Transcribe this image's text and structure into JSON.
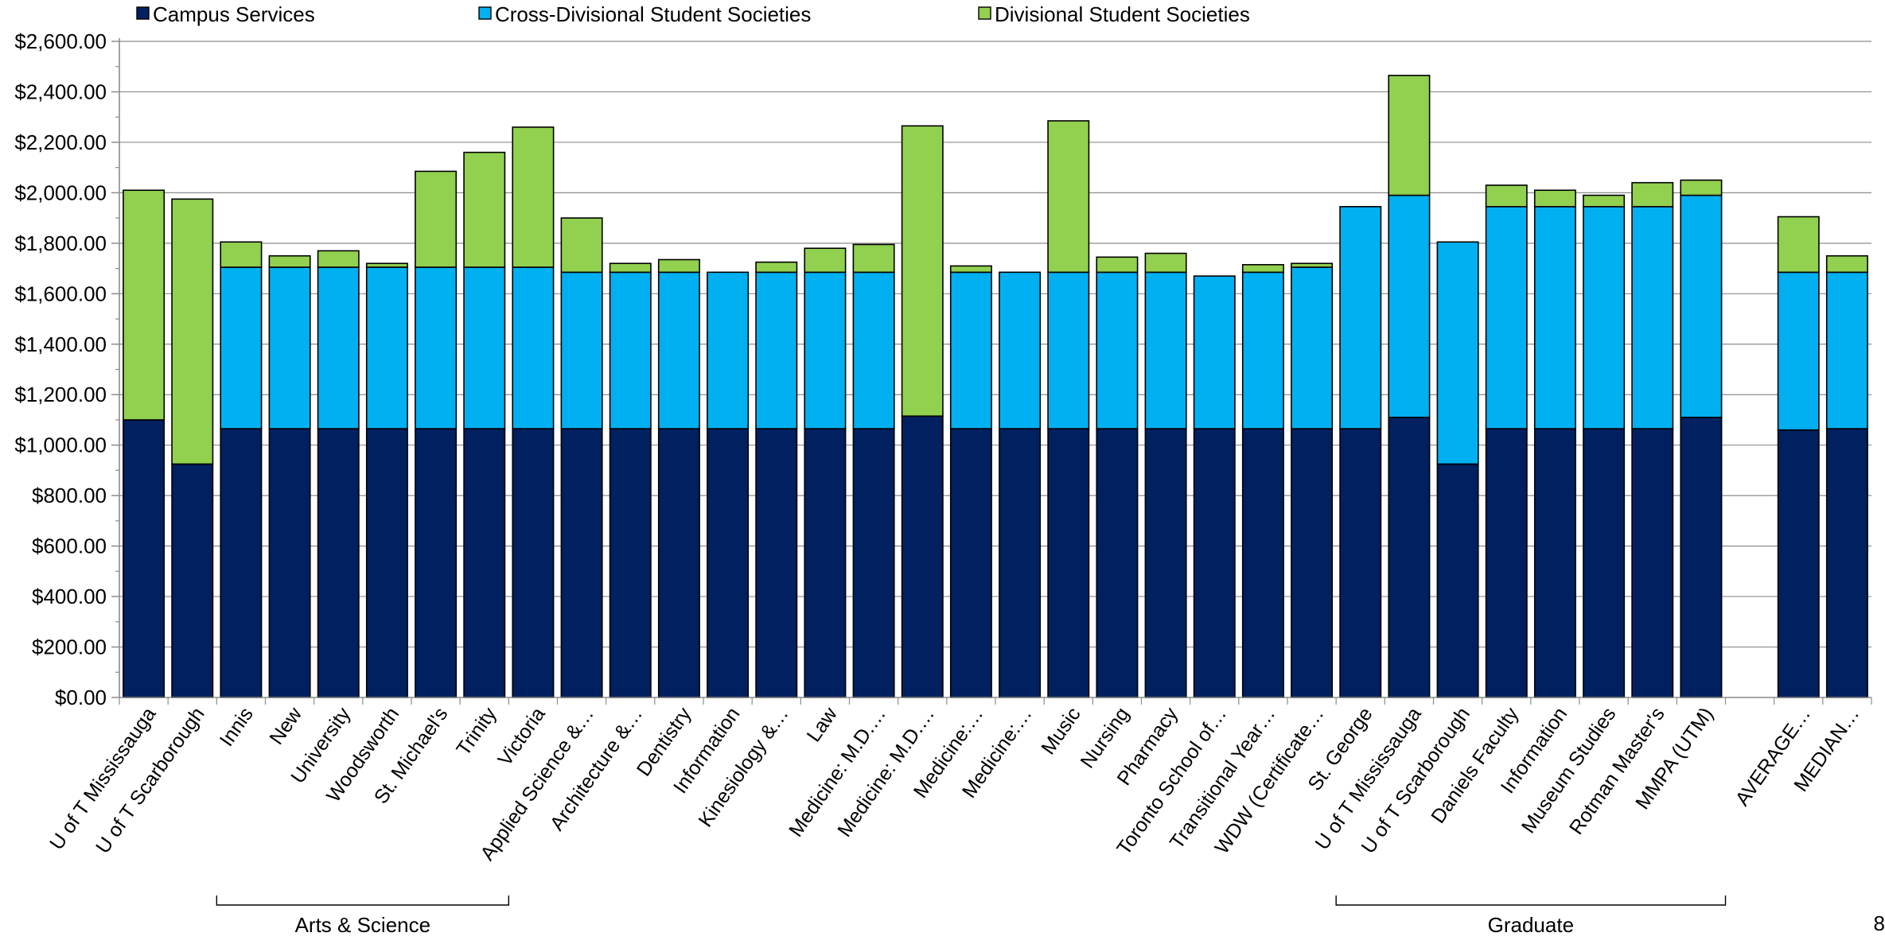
{
  "page_number": "8",
  "chart_data": {
    "type": "bar",
    "stacked": true,
    "title": "",
    "xlabel": "",
    "ylabel": "",
    "ylim": [
      0,
      2600
    ],
    "y_major_step": 200,
    "y_minor_step": 100,
    "y_tick_labels": [
      "$0.00",
      "$200.00",
      "$400.00",
      "$600.00",
      "$800.00",
      "$1,000.00",
      "$1,200.00",
      "$1,400.00",
      "$1,600.00",
      "$1,800.00",
      "$2,000.00",
      "$2,200.00",
      "$2,400.00",
      "$2,600.00"
    ],
    "grid": true,
    "legend_position": "top",
    "categories": [
      "U of T Mississauga",
      "U of T Scarborough",
      "Innis",
      "New",
      "University",
      "Woodsworth",
      "St. Michael's",
      "Trinity",
      "Victoria",
      "Applied Science &…",
      "Architecture &…",
      "Dentistry",
      "Information",
      "Kinesiology &…",
      "Law",
      "Medicine: M.D.…",
      "Medicine: M.D.…",
      "Medicine:…",
      "Medicine:…",
      "Music",
      "Nursing",
      "Pharmacy",
      "Toronto School of…",
      "Transitional Year…",
      "WDW (Certificate…",
      "St. George",
      "U of T Mississauga",
      "U of T Scarborough",
      "Daniels Faculty",
      "Information",
      "Museum Studies",
      "Rotman Master's",
      "MMPA (UTM)",
      "",
      "AVERAGE…",
      "MEDIAN…"
    ],
    "series": [
      {
        "name": "Campus Services",
        "color": "#002060",
        "values": [
          1100,
          925,
          1065,
          1065,
          1065,
          1065,
          1065,
          1065,
          1065,
          1065,
          1065,
          1065,
          1065,
          1065,
          1065,
          1065,
          1115,
          1065,
          1065,
          1065,
          1065,
          1065,
          1065,
          1065,
          1065,
          1065,
          1110,
          925,
          1065,
          1065,
          1065,
          1065,
          1110,
          null,
          1060,
          1065
        ]
      },
      {
        "name": "Cross-Divisional Student Societies",
        "color": "#00B0F0",
        "values": [
          0,
          0,
          640,
          640,
          640,
          640,
          640,
          640,
          640,
          620,
          620,
          620,
          620,
          620,
          620,
          620,
          0,
          620,
          620,
          620,
          620,
          620,
          605,
          620,
          640,
          880,
          880,
          880,
          880,
          880,
          880,
          880,
          880,
          null,
          625,
          620
        ]
      },
      {
        "name": "Divisional Student Societies",
        "color": "#92D050",
        "values": [
          910,
          1050,
          100,
          45,
          65,
          15,
          380,
          455,
          555,
          215,
          35,
          50,
          0,
          40,
          95,
          110,
          1150,
          25,
          0,
          600,
          60,
          75,
          0,
          30,
          15,
          0,
          475,
          0,
          85,
          65,
          45,
          95,
          60,
          null,
          220,
          65
        ]
      }
    ],
    "group_labels": [
      {
        "label": "Arts & Science",
        "from_index": 2,
        "to_index": 7
      },
      {
        "label": "Graduate",
        "from_index": 25,
        "to_index": 32
      }
    ]
  }
}
